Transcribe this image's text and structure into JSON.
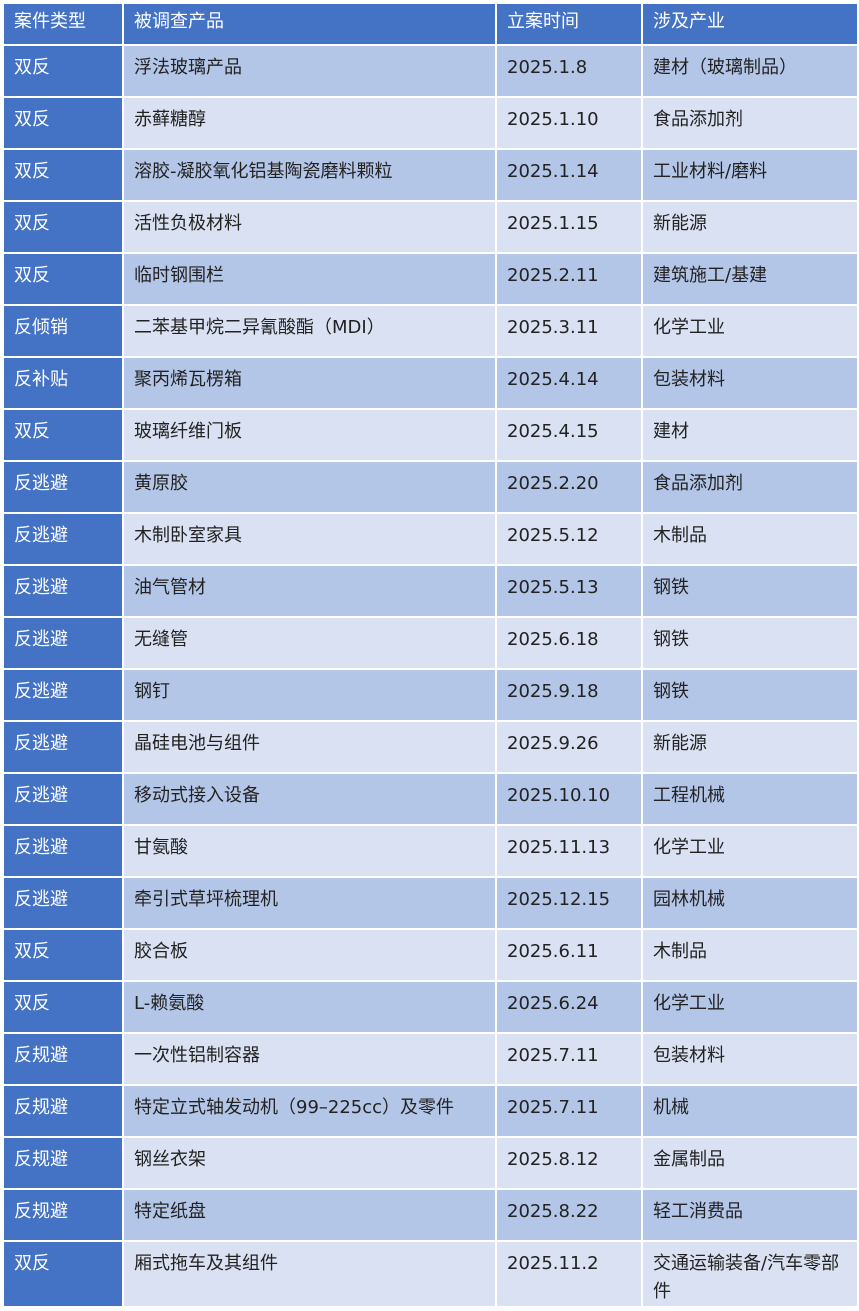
{
  "colors": {
    "header": "#4472C4",
    "row_odd": "#B4C6E7",
    "row_even": "#D9E1F2"
  },
  "headers": [
    "案件类型",
    "被调查产品",
    "立案时间",
    "涉及产业"
  ],
  "rows": [
    [
      "双反",
      "浮法玻璃产品",
      "2025.1.8",
      "建材（玻璃制品）"
    ],
    [
      "双反",
      "赤藓糖醇",
      "2025.1.10",
      "食品添加剂"
    ],
    [
      "双反",
      "溶胶-凝胶氧化铝基陶瓷磨料颗粒",
      "2025.1.14",
      "工业材料/磨料"
    ],
    [
      "双反",
      "活性负极材料",
      "2025.1.15",
      "新能源"
    ],
    [
      "双反",
      "临时钢围栏",
      "2025.2.11",
      "建筑施工/基建"
    ],
    [
      "反倾销",
      "二苯基甲烷二异氰酸酯（MDI）",
      "2025.3.11",
      "化学工业"
    ],
    [
      "反补贴",
      "聚丙烯瓦楞箱",
      "2025.4.14",
      "包装材料"
    ],
    [
      "双反",
      "玻璃纤维门板",
      "2025.4.15",
      "建材"
    ],
    [
      "反逃避",
      "黄原胶",
      "2025.2.20",
      "食品添加剂"
    ],
    [
      "反逃避",
      "木制卧室家具",
      "2025.5.12",
      "木制品"
    ],
    [
      "反逃避",
      "油气管材",
      "2025.5.13",
      "钢铁"
    ],
    [
      "反逃避",
      "无缝管",
      "2025.6.18",
      "钢铁"
    ],
    [
      "反逃避",
      "钢钉",
      "2025.9.18",
      "钢铁"
    ],
    [
      "反逃避",
      "晶硅电池与组件",
      "2025.9.26",
      "新能源"
    ],
    [
      "反逃避",
      "移动式接入设备",
      "2025.10.10",
      "工程机械"
    ],
    [
      "反逃避",
      "甘氨酸",
      "2025.11.13",
      "化学工业"
    ],
    [
      "反逃避",
      "牵引式草坪梳理机",
      "2025.12.15",
      "园林机械"
    ],
    [
      "双反",
      "胶合板",
      "2025.6.11",
      "木制品"
    ],
    [
      "双反",
      "L-赖氨酸",
      "2025.6.24",
      "化学工业"
    ],
    [
      "反规避",
      "一次性铝制容器",
      "2025.7.11",
      "包装材料"
    ],
    [
      "反规避",
      "特定立式轴发动机（99–225cc）及零件",
      "2025.7.11",
      "机械"
    ],
    [
      "反规避",
      "钢丝衣架",
      "2025.8.12",
      "金属制品"
    ],
    [
      "反规避",
      "特定纸盘",
      "2025.8.22",
      "轻工消费品"
    ],
    [
      "双反",
      "厢式拖车及其组件",
      "2025.11.2",
      "交通运输装备/汽车零部件"
    ]
  ]
}
